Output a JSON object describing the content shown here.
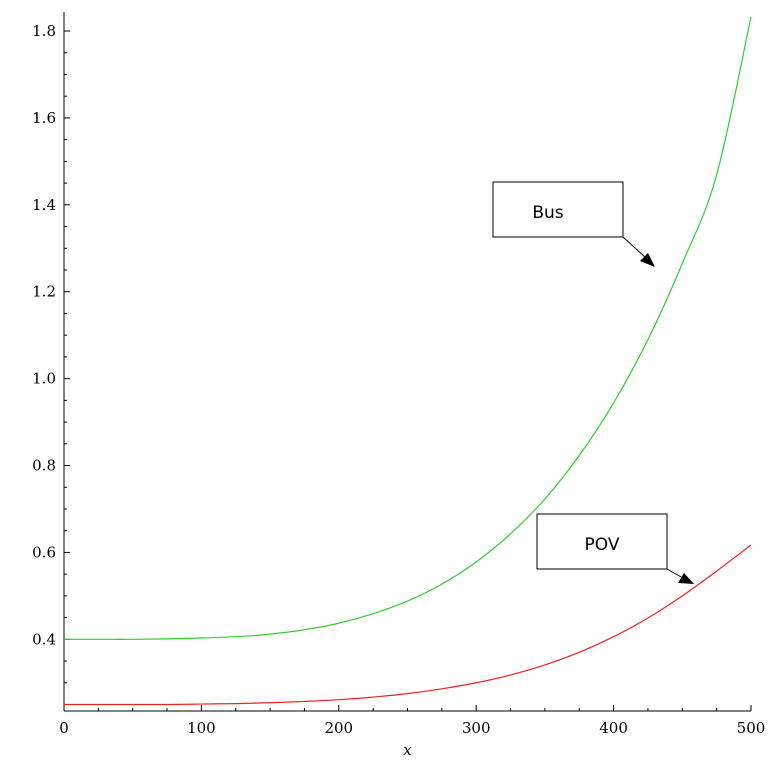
{
  "chart_data": {
    "type": "line",
    "title": "",
    "xlabel": "x",
    "ylabel": "",
    "xlim": [
      0,
      500
    ],
    "ylim": [
      0.235,
      1.83
    ],
    "grid": false,
    "x_ticks": [
      "0",
      "100",
      "200",
      "300",
      "400",
      "500"
    ],
    "y_ticks": [
      "0.4",
      "0.6",
      "0.8",
      "1.0",
      "1.2",
      "1.4",
      "1.6",
      "1.8"
    ],
    "series": [
      {
        "name": "Bus",
        "color": "#33cc33",
        "x": [
          0,
          25,
          50,
          75,
          100,
          125,
          150,
          175,
          200,
          225,
          250,
          275,
          300,
          325,
          350,
          375,
          400,
          425,
          450,
          475,
          500
        ],
        "y": [
          0.4,
          0.4,
          0.4,
          0.401,
          0.403,
          0.406,
          0.412,
          0.422,
          0.437,
          0.459,
          0.488,
          0.527,
          0.578,
          0.643,
          0.723,
          0.823,
          0.944,
          1.09,
          1.265,
          1.469,
          1.833
        ]
      },
      {
        "name": "POV",
        "color": "#ee2222",
        "x": [
          0,
          25,
          50,
          75,
          100,
          125,
          150,
          175,
          200,
          225,
          250,
          275,
          300,
          325,
          350,
          375,
          400,
          425,
          450,
          475,
          500
        ],
        "y": [
          0.25,
          0.25,
          0.25,
          0.25,
          0.251,
          0.252,
          0.254,
          0.257,
          0.261,
          0.267,
          0.275,
          0.286,
          0.3,
          0.318,
          0.341,
          0.37,
          0.406,
          0.449,
          0.5,
          0.557,
          0.617
        ]
      }
    ],
    "annotations": [
      {
        "label": "Bus",
        "series": "Bus"
      },
      {
        "label": "POV",
        "series": "POV"
      }
    ]
  }
}
